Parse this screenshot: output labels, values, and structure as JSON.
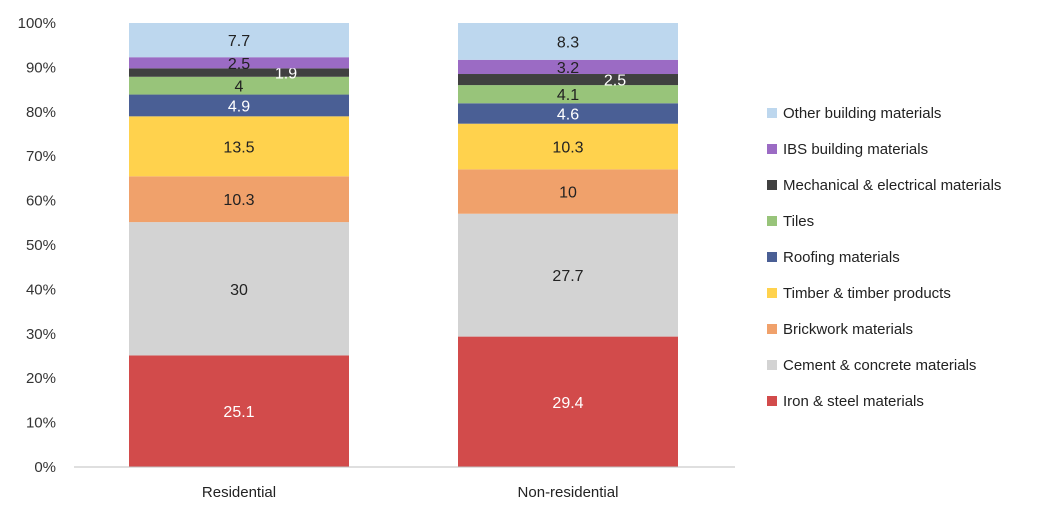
{
  "chart_data": {
    "type": "bar",
    "stacked": true,
    "percent": true,
    "categories": [
      "Residential",
      "Non-residential"
    ],
    "series": [
      {
        "name": "Iron & steel materials",
        "values": [
          25.1,
          29.4
        ],
        "color": "#D24B4B",
        "label_color": "#ffffff"
      },
      {
        "name": "Cement & concrete materials",
        "values": [
          30,
          27.7
        ],
        "color": "#D3D3D3",
        "label_color": "#222222"
      },
      {
        "name": "Brickwork materials",
        "values": [
          10.3,
          10
        ],
        "color": "#F0A16B",
        "label_color": "#222222"
      },
      {
        "name": "Timber & timber products",
        "values": [
          13.5,
          10.3
        ],
        "color": "#FFD24D",
        "label_color": "#222222"
      },
      {
        "name": "Roofing materials",
        "values": [
          4.9,
          4.6
        ],
        "color": "#4A5F95",
        "label_color": "#ffffff"
      },
      {
        "name": "Tiles",
        "values": [
          4,
          4.1
        ],
        "color": "#98C47A",
        "label_color": "#222222"
      },
      {
        "name": "Mechanical & electrical materials",
        "values": [
          1.9,
          2.5
        ],
        "color": "#404040",
        "label_color": "#ffffff"
      },
      {
        "name": "IBS building materials",
        "values": [
          2.5,
          3.2
        ],
        "color": "#9B6BC4",
        "label_color": "#222222"
      },
      {
        "name": "Other building materials",
        "values": [
          7.7,
          8.3
        ],
        "color": "#BDD7EE",
        "label_color": "#222222"
      }
    ],
    "y_ticks": [
      "0%",
      "10%",
      "20%",
      "30%",
      "40%",
      "50%",
      "60%",
      "70%",
      "80%",
      "90%",
      "100%"
    ],
    "ylim": [
      0,
      100
    ],
    "legend_position": "right",
    "grid": false,
    "title": "",
    "xlabel": "",
    "ylabel": ""
  }
}
